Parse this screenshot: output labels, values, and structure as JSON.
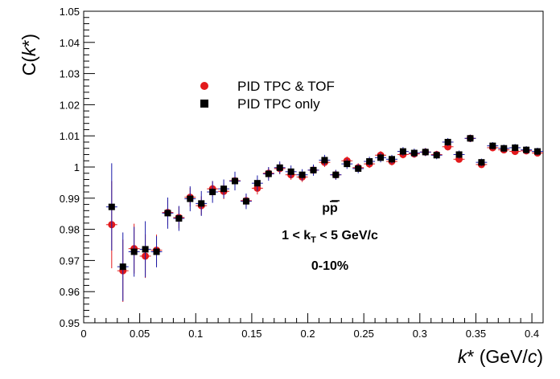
{
  "chart_data": {
    "type": "scatter",
    "xlabel": "k* (GeV/c)",
    "ylabel": "C(k*)",
    "xlim": [
      0,
      0.41
    ],
    "ylim": [
      0.95,
      1.05
    ],
    "x_ticks": [
      "0",
      "0.05",
      "0.1",
      "0.15",
      "0.2",
      "0.25",
      "0.3",
      "0.35",
      "0.4"
    ],
    "y_ticks": [
      "0.95",
      "0.96",
      "0.97",
      "0.98",
      "0.99",
      "1",
      "1.01",
      "1.02",
      "1.03",
      "1.04",
      "1.05"
    ],
    "grid": false,
    "legend_placement": "top-left",
    "annotations": [
      "pp̅",
      "1 < kT < 5 GeV/c",
      "0-10%"
    ],
    "series": [
      {
        "name": "PID TPC & TOF",
        "marker": "circle",
        "color": "#e31a1c",
        "points": [
          {
            "x": 0.025,
            "y": 0.9815,
            "err": 0.014
          },
          {
            "x": 0.035,
            "y": 0.9667,
            "err": 0.01
          },
          {
            "x": 0.045,
            "y": 0.9738,
            "err": 0.008
          },
          {
            "x": 0.055,
            "y": 0.9714,
            "err": 0.007
          },
          {
            "x": 0.065,
            "y": 0.9733,
            "err": 0.005
          },
          {
            "x": 0.075,
            "y": 0.9854,
            "err": 0.004
          },
          {
            "x": 0.085,
            "y": 0.9838,
            "err": 0.0035
          },
          {
            "x": 0.095,
            "y": 0.9903,
            "err": 0.003
          },
          {
            "x": 0.105,
            "y": 0.9876,
            "err": 0.003
          },
          {
            "x": 0.115,
            "y": 0.993,
            "err": 0.0025
          },
          {
            "x": 0.125,
            "y": 0.9922,
            "err": 0.0025
          },
          {
            "x": 0.135,
            "y": 0.9956,
            "err": 0.002
          },
          {
            "x": 0.145,
            "y": 0.9892,
            "err": 0.002
          },
          {
            "x": 0.155,
            "y": 0.9932,
            "err": 0.002
          },
          {
            "x": 0.165,
            "y": 0.998,
            "err": 0.0018
          },
          {
            "x": 0.175,
            "y": 0.9995,
            "err": 0.0018
          },
          {
            "x": 0.185,
            "y": 0.9975,
            "err": 0.0016
          },
          {
            "x": 0.195,
            "y": 0.9968,
            "err": 0.0016
          },
          {
            "x": 0.205,
            "y": 0.999,
            "err": 0.0015
          },
          {
            "x": 0.215,
            "y": 1.0015,
            "err": 0.0015
          },
          {
            "x": 0.225,
            "y": 0.9975,
            "err": 0.0015
          },
          {
            "x": 0.235,
            "y": 1.002,
            "err": 0.0014
          },
          {
            "x": 0.245,
            "y": 0.9998,
            "err": 0.0014
          },
          {
            "x": 0.255,
            "y": 1.001,
            "err": 0.0013
          },
          {
            "x": 0.265,
            "y": 1.0038,
            "err": 0.0013
          },
          {
            "x": 0.275,
            "y": 1.0018,
            "err": 0.0013
          },
          {
            "x": 0.285,
            "y": 1.004,
            "err": 0.0012
          },
          {
            "x": 0.295,
            "y": 1.0042,
            "err": 0.0012
          },
          {
            "x": 0.305,
            "y": 1.0048,
            "err": 0.0012
          },
          {
            "x": 0.315,
            "y": 1.004,
            "err": 0.0012
          },
          {
            "x": 0.325,
            "y": 1.0065,
            "err": 0.0012
          },
          {
            "x": 0.335,
            "y": 1.0025,
            "err": 0.0011
          },
          {
            "x": 0.345,
            "y": 1.0092,
            "err": 0.0011
          },
          {
            "x": 0.355,
            "y": 1.0008,
            "err": 0.0011
          },
          {
            "x": 0.365,
            "y": 1.0062,
            "err": 0.0011
          },
          {
            "x": 0.375,
            "y": 1.0055,
            "err": 0.0011
          },
          {
            "x": 0.385,
            "y": 1.005,
            "err": 0.0011
          },
          {
            "x": 0.395,
            "y": 1.0052,
            "err": 0.0011
          },
          {
            "x": 0.405,
            "y": 1.0045,
            "err": 0.0011
          }
        ]
      },
      {
        "name": "PID TPC only",
        "marker": "square",
        "color": "#000000",
        "points": [
          {
            "x": 0.025,
            "y": 0.9872,
            "err": 0.014
          },
          {
            "x": 0.035,
            "y": 0.968,
            "err": 0.011
          },
          {
            "x": 0.045,
            "y": 0.9728,
            "err": 0.008
          },
          {
            "x": 0.055,
            "y": 0.9736,
            "err": 0.009
          },
          {
            "x": 0.065,
            "y": 0.9728,
            "err": 0.005
          },
          {
            "x": 0.075,
            "y": 0.9852,
            "err": 0.005
          },
          {
            "x": 0.085,
            "y": 0.9835,
            "err": 0.004
          },
          {
            "x": 0.095,
            "y": 0.9898,
            "err": 0.004
          },
          {
            "x": 0.105,
            "y": 0.9883,
            "err": 0.004
          },
          {
            "x": 0.115,
            "y": 0.992,
            "err": 0.0035
          },
          {
            "x": 0.125,
            "y": 0.993,
            "err": 0.003
          },
          {
            "x": 0.135,
            "y": 0.9955,
            "err": 0.003
          },
          {
            "x": 0.145,
            "y": 0.989,
            "err": 0.0025
          },
          {
            "x": 0.155,
            "y": 0.9948,
            "err": 0.0025
          },
          {
            "x": 0.165,
            "y": 0.9978,
            "err": 0.0022
          },
          {
            "x": 0.175,
            "y": 0.9998,
            "err": 0.002
          },
          {
            "x": 0.185,
            "y": 0.9985,
            "err": 0.002
          },
          {
            "x": 0.195,
            "y": 0.9975,
            "err": 0.0018
          },
          {
            "x": 0.205,
            "y": 0.999,
            "err": 0.0018
          },
          {
            "x": 0.215,
            "y": 1.0022,
            "err": 0.0017
          },
          {
            "x": 0.225,
            "y": 0.9975,
            "err": 0.0016
          },
          {
            "x": 0.235,
            "y": 1.001,
            "err": 0.0016
          },
          {
            "x": 0.245,
            "y": 0.9995,
            "err": 0.0015
          },
          {
            "x": 0.255,
            "y": 1.0018,
            "err": 0.0015
          },
          {
            "x": 0.265,
            "y": 1.003,
            "err": 0.0015
          },
          {
            "x": 0.275,
            "y": 1.0025,
            "err": 0.0014
          },
          {
            "x": 0.285,
            "y": 1.005,
            "err": 0.0014
          },
          {
            "x": 0.295,
            "y": 1.0045,
            "err": 0.0014
          },
          {
            "x": 0.305,
            "y": 1.0048,
            "err": 0.0013
          },
          {
            "x": 0.315,
            "y": 1.0038,
            "err": 0.0013
          },
          {
            "x": 0.325,
            "y": 1.008,
            "err": 0.0013
          },
          {
            "x": 0.335,
            "y": 1.004,
            "err": 0.0013
          },
          {
            "x": 0.345,
            "y": 1.0092,
            "err": 0.0012
          },
          {
            "x": 0.355,
            "y": 1.0015,
            "err": 0.0012
          },
          {
            "x": 0.365,
            "y": 1.0068,
            "err": 0.0012
          },
          {
            "x": 0.375,
            "y": 1.006,
            "err": 0.0012
          },
          {
            "x": 0.385,
            "y": 1.0062,
            "err": 0.0012
          },
          {
            "x": 0.395,
            "y": 1.0055,
            "err": 0.0012
          },
          {
            "x": 0.405,
            "y": 1.005,
            "err": 0.0012
          }
        ]
      }
    ]
  }
}
